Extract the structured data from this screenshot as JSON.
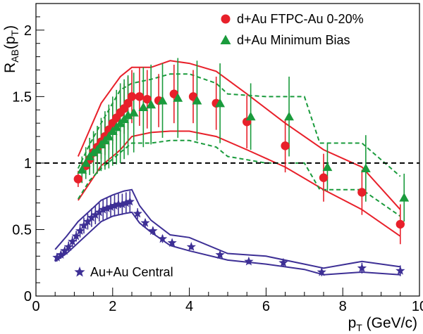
{
  "chart_data": {
    "type": "scatter",
    "xlabel": {
      "main": "p",
      "sub": "T",
      "unit": " (GeV/c)"
    },
    "ylabel": {
      "main": "R",
      "sub1": "AB",
      "mid": "(p",
      "sub2": "T",
      "end": ")"
    },
    "xlim": [
      0,
      10
    ],
    "ylim": [
      0,
      2.2
    ],
    "x_ticks": [
      "0",
      "2",
      "4",
      "6",
      "8",
      "10"
    ],
    "y_ticks": [
      "0",
      "0.5",
      "1",
      "1.5",
      "2"
    ],
    "reference_line": {
      "y": 1.0,
      "style": "dashed"
    },
    "grid": false,
    "legend_position": "top-right",
    "series": [
      {
        "name": "d+Au FTPC-Au 0-20%",
        "marker": "circle",
        "color": "#e8202a",
        "x": [
          1.1,
          1.3,
          1.4,
          1.5,
          1.6,
          1.7,
          1.8,
          1.9,
          2.0,
          2.1,
          2.2,
          2.3,
          2.4,
          2.5,
          2.7,
          2.9,
          3.2,
          3.6,
          4.1,
          4.7,
          5.5,
          6.5,
          7.5,
          8.5,
          9.5
        ],
        "y": [
          0.88,
          0.98,
          1.03,
          1.08,
          1.12,
          1.16,
          1.2,
          1.25,
          1.3,
          1.34,
          1.38,
          1.41,
          1.45,
          1.5,
          1.5,
          1.48,
          1.47,
          1.52,
          1.5,
          1.45,
          1.31,
          1.13,
          0.89,
          0.78,
          0.54
        ],
        "yerr": [
          0.06,
          0.07,
          0.08,
          0.1,
          0.12,
          0.13,
          0.14,
          0.15,
          0.16,
          0.17,
          0.18,
          0.19,
          0.2,
          0.2,
          0.22,
          0.22,
          0.2,
          0.22,
          0.2,
          0.2,
          0.2,
          0.2,
          0.18,
          0.17,
          0.15
        ],
        "sys_upper_band": {
          "x": [
            1.1,
            1.4,
            1.7,
            2.0,
            2.2,
            2.5,
            3.0,
            3.5,
            4.0,
            4.7,
            5.5,
            6.5,
            7.5,
            8.5,
            9.5
          ],
          "y": [
            1.05,
            1.25,
            1.45,
            1.57,
            1.65,
            1.72,
            1.72,
            1.77,
            1.75,
            1.69,
            1.52,
            1.3,
            1.1,
            0.97,
            0.65
          ]
        },
        "sys_lower_band": {
          "x": [
            1.1,
            1.4,
            1.7,
            2.0,
            2.2,
            2.5,
            3.0,
            3.5,
            4.0,
            4.7,
            5.5,
            6.5,
            7.5,
            8.5,
            9.5
          ],
          "y": [
            0.72,
            0.85,
            0.98,
            1.05,
            1.1,
            1.2,
            1.23,
            1.24,
            1.24,
            1.2,
            1.1,
            0.97,
            0.8,
            0.65,
            0.45
          ]
        }
      },
      {
        "name": "d+Au Minimum Bias",
        "marker": "triangle",
        "color": "#1a9b3c",
        "x": [
          1.2,
          1.3,
          1.4,
          1.5,
          1.6,
          1.7,
          1.8,
          1.9,
          2.0,
          2.1,
          2.2,
          2.3,
          2.4,
          2.55,
          2.8,
          3.0,
          3.3,
          3.7,
          4.2,
          4.8,
          5.6,
          6.6,
          7.6,
          8.6,
          9.6
        ],
        "y": [
          0.95,
          1.0,
          1.05,
          1.08,
          1.1,
          1.14,
          1.17,
          1.2,
          1.24,
          1.27,
          1.3,
          1.33,
          1.36,
          1.38,
          1.42,
          1.44,
          1.47,
          1.49,
          1.47,
          1.45,
          1.35,
          1.35,
          0.97,
          0.96,
          0.74
        ],
        "yerr": [
          0.1,
          0.12,
          0.14,
          0.16,
          0.18,
          0.2,
          0.22,
          0.24,
          0.26,
          0.28,
          0.3,
          0.3,
          0.3,
          0.3,
          0.3,
          0.3,
          0.28,
          0.3,
          0.3,
          0.3,
          0.25,
          0.3,
          0.18,
          0.25,
          0.18
        ],
        "sys_upper_band": {
          "x": [
            1.1,
            1.4,
            1.7,
            2.0,
            2.2,
            2.5,
            3.0,
            3.5,
            4.0,
            4.7,
            5.0,
            6.0,
            7.0,
            7.4,
            8.5,
            9.5
          ],
          "y": [
            0.96,
            1.14,
            1.3,
            1.45,
            1.55,
            1.6,
            1.63,
            1.67,
            1.67,
            1.6,
            1.52,
            1.5,
            1.5,
            1.15,
            1.15,
            0.9
          ]
        },
        "sys_lower_band": {
          "x": [
            1.1,
            1.4,
            1.7,
            2.0,
            2.2,
            2.5,
            3.0,
            3.5,
            4.0,
            4.7,
            5.0,
            6.0,
            7.0,
            7.4,
            8.5,
            9.5
          ],
          "y": [
            0.73,
            0.87,
            0.96,
            1.03,
            1.08,
            1.15,
            1.15,
            1.17,
            1.17,
            1.12,
            1.05,
            1.0,
            1.0,
            0.8,
            0.8,
            0.6
          ]
        }
      },
      {
        "name": "Au+Au Central",
        "marker": "star",
        "color": "#3d2f95",
        "x": [
          0.55,
          0.65,
          0.75,
          0.85,
          0.95,
          1.05,
          1.15,
          1.25,
          1.35,
          1.45,
          1.55,
          1.65,
          1.75,
          1.85,
          1.95,
          2.05,
          2.15,
          2.25,
          2.35,
          2.45,
          2.65,
          2.85,
          3.05,
          3.3,
          3.55,
          4.05,
          4.8,
          5.55,
          6.45,
          7.45,
          8.5,
          9.5
        ],
        "y": [
          0.29,
          0.31,
          0.34,
          0.37,
          0.41,
          0.45,
          0.49,
          0.53,
          0.56,
          0.59,
          0.61,
          0.63,
          0.65,
          0.66,
          0.67,
          0.68,
          0.69,
          0.69,
          0.7,
          0.71,
          0.62,
          0.55,
          0.49,
          0.43,
          0.4,
          0.37,
          0.31,
          0.26,
          0.25,
          0.18,
          0.21,
          0.19
        ],
        "yerr": [
          0.03,
          0.03,
          0.03,
          0.04,
          0.04,
          0.04,
          0.05,
          0.06,
          0.06,
          0.07,
          0.07,
          0.07,
          0.08,
          0.08,
          0.08,
          0.08,
          0.08,
          0.08,
          0.08,
          0.08,
          0.04,
          0.03,
          0.03,
          0.03,
          0.02,
          0.02,
          0.02,
          0.02,
          0.03,
          0.03,
          0.04,
          0.04
        ],
        "sys_upper_band": {
          "x": [
            0.5,
            0.8,
            1.1,
            1.4,
            1.7,
            2.0,
            2.3,
            2.5,
            2.7,
            3.0,
            3.5,
            4.0,
            5.0,
            6.0,
            7.0,
            7.5,
            8.5,
            9.5
          ],
          "y": [
            0.35,
            0.45,
            0.56,
            0.64,
            0.72,
            0.76,
            0.79,
            0.8,
            0.68,
            0.57,
            0.46,
            0.44,
            0.32,
            0.3,
            0.24,
            0.21,
            0.26,
            0.22
          ]
        },
        "sys_lower_band": {
          "x": [
            0.5,
            0.8,
            1.1,
            1.4,
            1.7,
            2.0,
            2.3,
            2.5,
            2.7,
            3.0,
            3.5,
            4.0,
            5.0,
            6.0,
            7.0,
            7.5,
            8.5,
            9.5
          ],
          "y": [
            0.26,
            0.32,
            0.4,
            0.48,
            0.56,
            0.6,
            0.62,
            0.63,
            0.55,
            0.48,
            0.38,
            0.34,
            0.27,
            0.24,
            0.2,
            0.16,
            0.18,
            0.16
          ]
        }
      }
    ]
  }
}
